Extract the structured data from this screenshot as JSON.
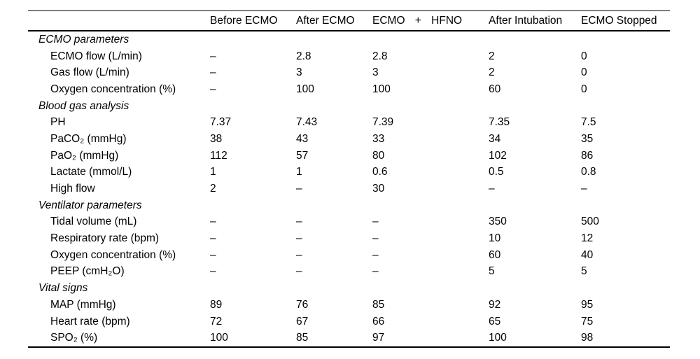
{
  "table": {
    "header": {
      "before_ecmo": "Before ECMO",
      "after_ecmo": "After ECMO",
      "ecmo_hfno": "ECMO + HFNO",
      "after_intubation": "After Intubation",
      "ecmo_stopped": "ECMO Stopped"
    },
    "rows": [
      {
        "type": "section",
        "label": "ECMO parameters"
      },
      {
        "type": "data",
        "label": "ECMO flow (L/min)",
        "values": [
          "–",
          "2.8",
          "2.8",
          "2",
          "0"
        ]
      },
      {
        "type": "data",
        "label": "Gas flow (L/min)",
        "values": [
          "–",
          "3",
          "3",
          "2",
          "0"
        ]
      },
      {
        "type": "data",
        "label": "Oxygen concentration (%)",
        "values": [
          "–",
          "100",
          "100",
          "60",
          "0"
        ]
      },
      {
        "type": "section",
        "label": "Blood gas analysis"
      },
      {
        "type": "data",
        "label": "PH",
        "values": [
          "7.37",
          "7.43",
          "7.39",
          "7.35",
          "7.5"
        ]
      },
      {
        "type": "data",
        "label": "PaCO₂ (mmHg)",
        "values": [
          "38",
          "43",
          "33",
          "34",
          "35"
        ]
      },
      {
        "type": "data",
        "label": "PaO₂ (mmHg)",
        "values": [
          "112",
          "57",
          "80",
          "102",
          "86"
        ]
      },
      {
        "type": "data",
        "label": "Lactate (mmol/L)",
        "values": [
          "1",
          "1",
          "0.6",
          "0.5",
          "0.8"
        ]
      },
      {
        "type": "data",
        "label": "High flow",
        "values": [
          "2",
          "–",
          "30",
          "–",
          "–"
        ]
      },
      {
        "type": "section",
        "label": "Ventilator parameters"
      },
      {
        "type": "data",
        "label": "Tidal volume (mL)",
        "values": [
          "–",
          "–",
          "–",
          "350",
          "500"
        ]
      },
      {
        "type": "data",
        "label": "Respiratory rate (bpm)",
        "values": [
          "–",
          "–",
          "–",
          "10",
          "12"
        ]
      },
      {
        "type": "data",
        "label": "Oxygen concentration (%)",
        "values": [
          "–",
          "–",
          "–",
          "60",
          "40"
        ]
      },
      {
        "type": "data",
        "label": "PEEP (cmH₂O)",
        "values": [
          "–",
          "–",
          "–",
          "5",
          "5"
        ]
      },
      {
        "type": "section",
        "label": "Vital signs"
      },
      {
        "type": "data",
        "label": "MAP (mmHg)",
        "values": [
          "89",
          "76",
          "85",
          "92",
          "95"
        ]
      },
      {
        "type": "data",
        "label": "Heart rate (bpm)",
        "values": [
          "72",
          "67",
          "66",
          "65",
          "75"
        ]
      },
      {
        "type": "data",
        "label": "SPO₂ (%)",
        "values": [
          "100",
          "85",
          "97",
          "100",
          "98"
        ]
      }
    ]
  }
}
